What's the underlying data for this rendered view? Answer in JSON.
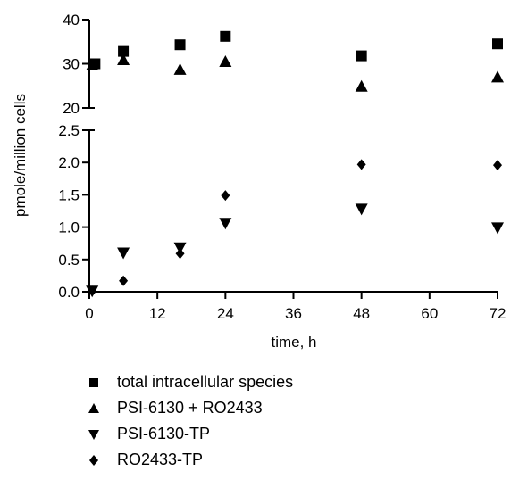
{
  "chart_data": {
    "type": "scatter",
    "xlabel": "time, h",
    "ylabel": "pmole/million cells",
    "xlim": [
      0,
      72
    ],
    "x_ticks": [
      "0",
      "12",
      "24",
      "36",
      "48",
      "60",
      "72"
    ],
    "y_axis_broken": true,
    "y_upper_segment": {
      "ylim": [
        20,
        40
      ],
      "ticks": [
        "20",
        "30",
        "40"
      ]
    },
    "y_lower_segment": {
      "ylim": [
        0,
        2.5
      ],
      "ticks": [
        "0.0",
        "0.5",
        "1.0",
        "1.5",
        "2.0",
        "2.5"
      ]
    },
    "legend_position": "bottom",
    "series": [
      {
        "name": "total intracellular species",
        "marker": "square",
        "points": [
          [
            1,
            30.0
          ],
          [
            6,
            32.8
          ],
          [
            16,
            34.3
          ],
          [
            24,
            36.2
          ],
          [
            48,
            31.8
          ],
          [
            72,
            34.5
          ]
        ]
      },
      {
        "name": "PSI-6130 + RO2433",
        "marker": "triangle-up",
        "points": [
          [
            0.5,
            29.7
          ],
          [
            6,
            30.9
          ],
          [
            16,
            28.7
          ],
          [
            24,
            30.5
          ],
          [
            48,
            24.9
          ],
          [
            72,
            27.0
          ]
        ]
      },
      {
        "name": "PSI-6130-TP",
        "marker": "triangle-down",
        "points": [
          [
            0.5,
            0.01
          ],
          [
            6,
            0.6
          ],
          [
            16,
            0.68
          ],
          [
            24,
            1.06
          ],
          [
            48,
            1.28
          ],
          [
            72,
            0.99
          ]
        ]
      },
      {
        "name": "RO2433-TP",
        "marker": "diamond",
        "points": [
          [
            0.5,
            0.01
          ],
          [
            6,
            0.17
          ],
          [
            16,
            0.59
          ],
          [
            24,
            1.49
          ],
          [
            48,
            1.97
          ],
          [
            72,
            1.96
          ]
        ]
      }
    ],
    "colors": {
      "marker": "#000000",
      "axis": "#000000",
      "background": "#ffffff"
    }
  }
}
